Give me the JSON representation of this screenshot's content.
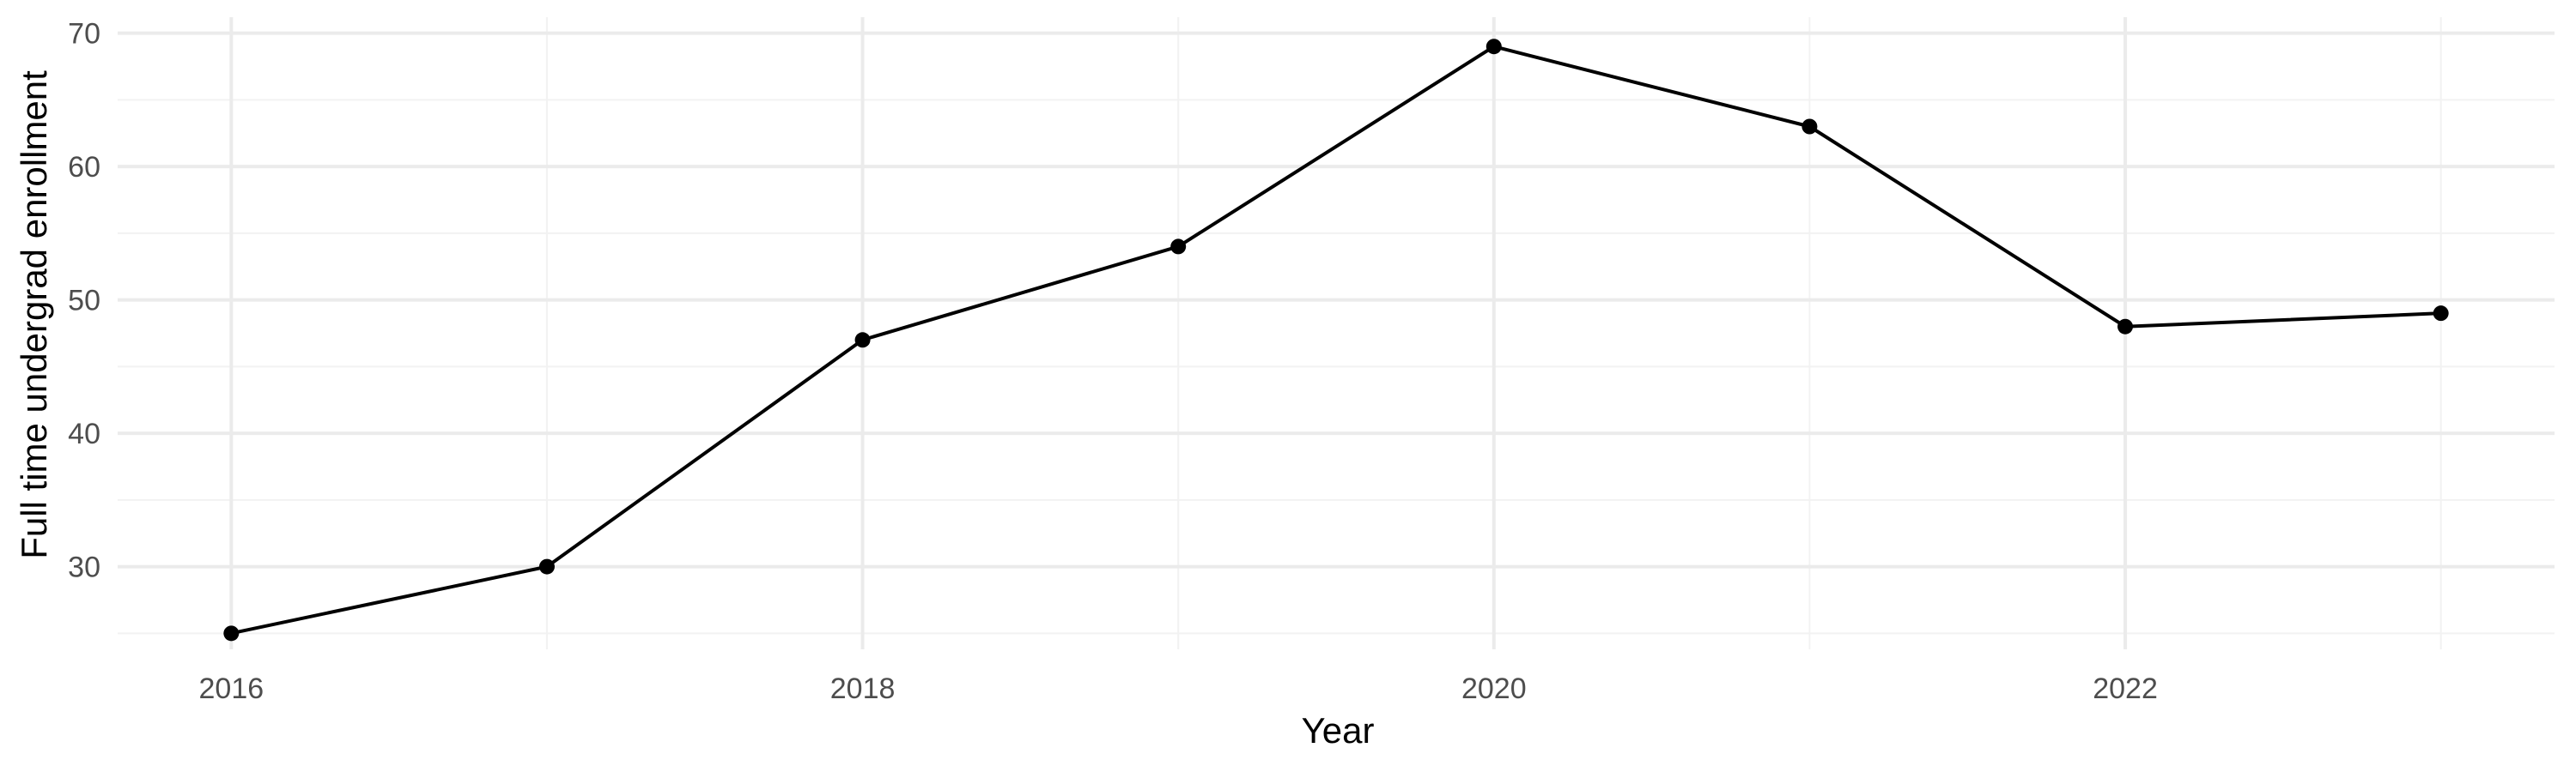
{
  "chart_data": {
    "type": "line",
    "xlabel": "Year",
    "ylabel": "Full time undergrad enrollment",
    "x": [
      2016,
      2017,
      2018,
      2019,
      2020,
      2021,
      2022,
      2023
    ],
    "series": [
      {
        "values": [
          25,
          30,
          47,
          54,
          69,
          63,
          48,
          49
        ]
      }
    ],
    "xlim": [
      2015.64,
      2023.36
    ],
    "ylim": [
      23.8,
      71.2
    ],
    "x_major_ticks": [
      2016,
      2018,
      2020,
      2022
    ],
    "x_minor_ticks": [
      2017,
      2019,
      2021,
      2023
    ],
    "y_major_ticks": [
      30,
      40,
      50,
      60,
      70
    ],
    "y_minor_ticks": [
      25,
      35,
      45,
      55,
      65
    ],
    "grid": true,
    "legend": "none",
    "line_color": "#000000",
    "point_color": "#000000"
  }
}
